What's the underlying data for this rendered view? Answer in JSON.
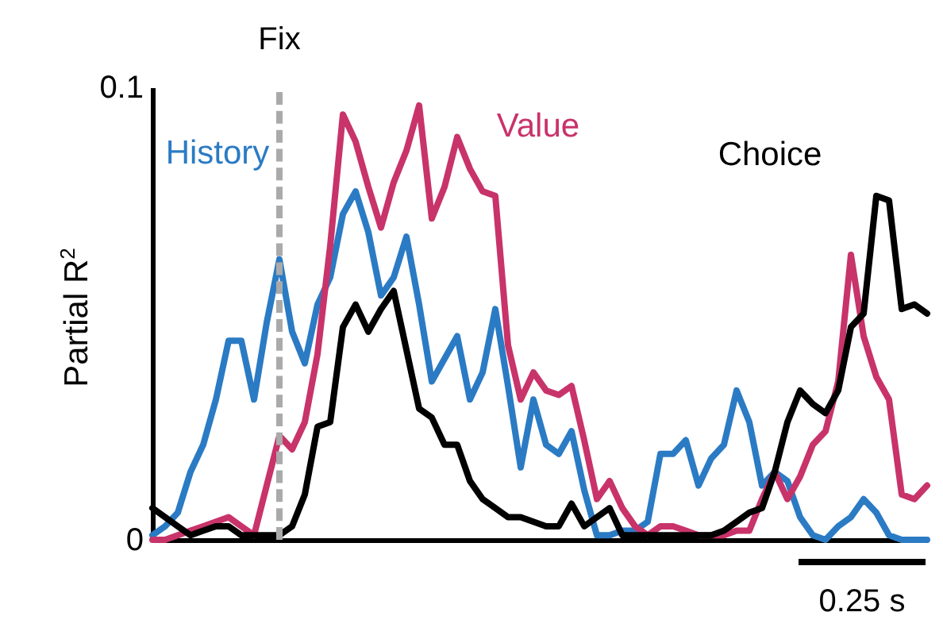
{
  "chart_data": {
    "type": "line",
    "ylabel": "Partial R$^{2}$",
    "categories": [
      null,
      null,
      null,
      null,
      null,
      null,
      null,
      null,
      null,
      null,
      null,
      null,
      null,
      null,
      null,
      null,
      null,
      null,
      null,
      null,
      null,
      null,
      null,
      null,
      null,
      null,
      null,
      null,
      null,
      null,
      null,
      null,
      null,
      null,
      null,
      null,
      null,
      null,
      null,
      null,
      null,
      null,
      null,
      null,
      null,
      null,
      null,
      null,
      null,
      null,
      null,
      null,
      null,
      null,
      null,
      null,
      null,
      null,
      null,
      null,
      null,
      null
    ],
    "ylim": [
      0,
      0.1
    ],
    "yticks": [
      0,
      0.1
    ],
    "tick_labels": "y",
    "grid": false,
    "marker": "none",
    "line_style": "solid",
    "annotations": [
      "Fix",
      "0.25 s"
    ],
    "series": [
      {
        "name": "History",
        "color": "#2b7bc4",
        "values": [
          0.001,
          0.003,
          0.006,
          0.015,
          0.021,
          0.031,
          0.044,
          0.044,
          0.031,
          0.048,
          0.062,
          0.046,
          0.039,
          0.052,
          0.058,
          0.072,
          0.077,
          0.068,
          0.054,
          0.058,
          0.067,
          0.052,
          0.035,
          0.04,
          0.045,
          0.031,
          0.037,
          0.051,
          0.034,
          0.016,
          0.031,
          0.021,
          0.019,
          0.024,
          0.011,
          0.001,
          0.001,
          0.002,
          0.002,
          0.004,
          0.019,
          0.019,
          0.022,
          0.012,
          0.018,
          0.021,
          0.033,
          0.026,
          0.012,
          0.015,
          0.013,
          0.005,
          0.001,
          0,
          0.003,
          0.005,
          0.009,
          0.006,
          0.001,
          0,
          0,
          0
        ]
      },
      {
        "name": "Value",
        "color": "#c8336a",
        "values": [
          0,
          0,
          0.001,
          0.002,
          0.003,
          0.004,
          0.005,
          0.003,
          0.001,
          0.012,
          0.023,
          0.02,
          0.026,
          0.041,
          0.065,
          0.094,
          0.088,
          0.078,
          0.069,
          0.079,
          0.086,
          0.096,
          0.071,
          0.078,
          0.089,
          0.082,
          0.077,
          0.076,
          0.043,
          0.031,
          0.037,
          0.033,
          0.032,
          0.034,
          0.022,
          0.009,
          0.013,
          0.007,
          0.003,
          0.001,
          0.003,
          0.003,
          0.002,
          0.001,
          0.001,
          0.001,
          0.002,
          0.002,
          0.009,
          0.015,
          0.009,
          0.014,
          0.021,
          0.024,
          0.035,
          0.063,
          0.045,
          0.036,
          0.031,
          0.01,
          0.009,
          0.012
        ]
      },
      {
        "name": "Choice",
        "color": "#000000",
        "values": [
          0.007,
          0.005,
          0.003,
          0.001,
          0.002,
          0.003,
          0.003,
          0.001,
          0.001,
          0.001,
          0.001,
          0.003,
          0.01,
          0.025,
          0.026,
          0.047,
          0.052,
          0.046,
          0.051,
          0.055,
          0.042,
          0.029,
          0.027,
          0.021,
          0.021,
          0.013,
          0.009,
          0.007,
          0.005,
          0.005,
          0.004,
          0.003,
          0.003,
          0.008,
          0.003,
          0.005,
          0.007,
          0.001,
          0.001,
          0.001,
          0.001,
          0.001,
          0.001,
          0.001,
          0.001,
          0.002,
          0.004,
          0.006,
          0.007,
          0.015,
          0.026,
          0.033,
          0.03,
          0.028,
          0.033,
          0.047,
          0.05,
          0.076,
          0.075,
          0.051,
          0.052,
          0.05
        ]
      }
    ]
  }
}
